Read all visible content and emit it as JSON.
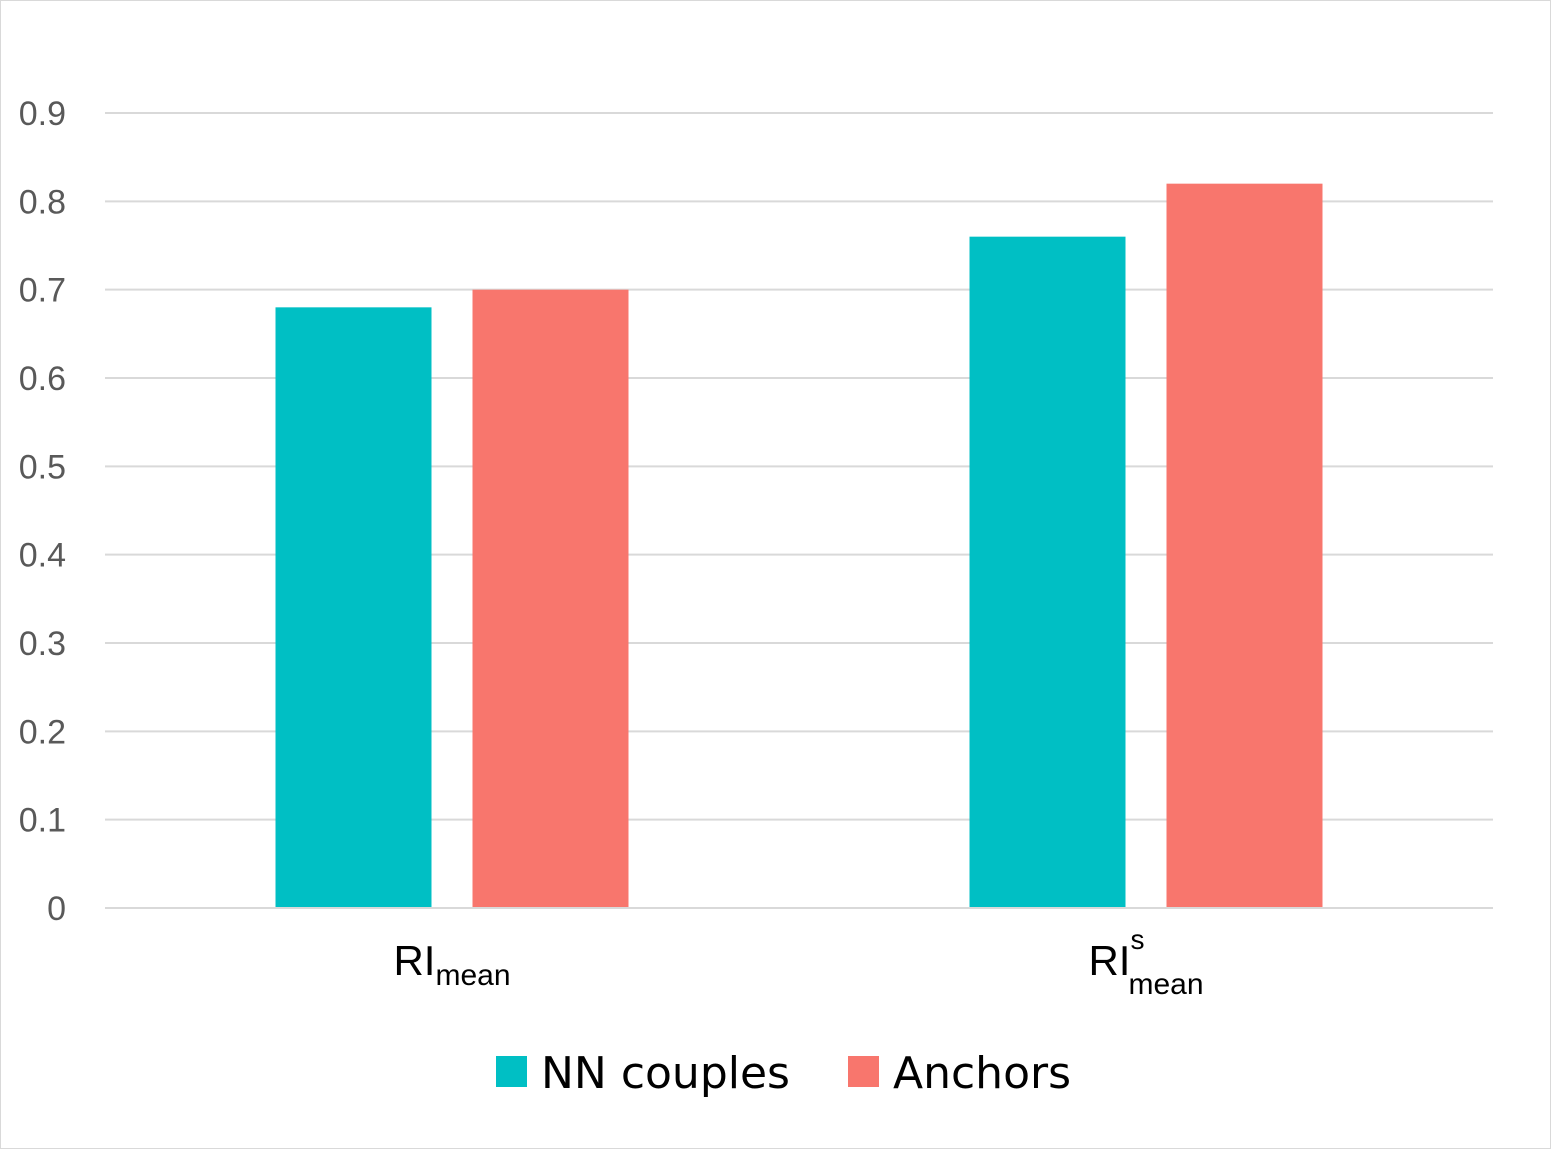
{
  "chart_data": {
    "type": "bar",
    "categories": [
      {
        "main": "RI",
        "sub": "mean",
        "sup": ""
      },
      {
        "main": "RI",
        "sub": "mean",
        "sup": "s"
      }
    ],
    "series": [
      {
        "name": "NN couples",
        "color": "#00bfc4",
        "values": [
          0.68,
          0.76
        ]
      },
      {
        "name": "Anchors",
        "color": "#f8766d",
        "values": [
          0.7,
          0.82
        ]
      }
    ],
    "yticks": [
      "0",
      "0.1",
      "0.2",
      "0.3",
      "0.4",
      "0.5",
      "0.6",
      "0.7",
      "0.8",
      "0.9"
    ],
    "ylim": [
      0,
      0.9
    ],
    "grid": true,
    "legend": "bottom-center",
    "title": "",
    "xlabel": "",
    "ylabel": ""
  }
}
